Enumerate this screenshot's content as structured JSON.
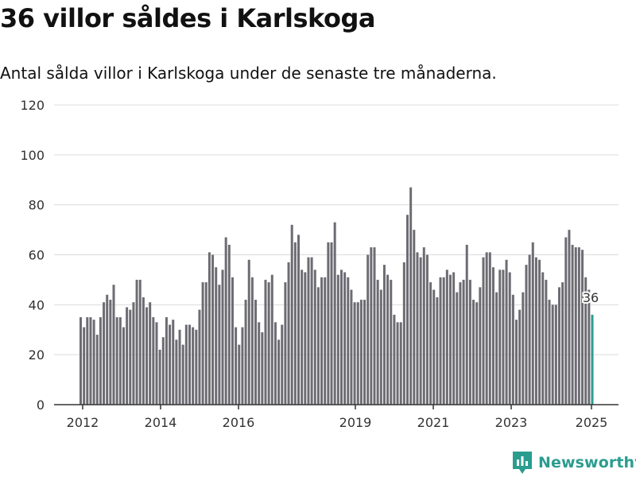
{
  "title": "36 villor såldes i Karlskoga",
  "subtitle": "Antal sålda villor i Karlskoga under de senaste tre månaderna.",
  "brand": {
    "name": "Newsworthy",
    "icon": "newsworthy-logo-icon",
    "color": "#2a9d8f"
  },
  "chart_data": {
    "type": "bar",
    "ylim": [
      0,
      120
    ],
    "yticks": [
      0,
      20,
      40,
      60,
      80,
      100,
      120
    ],
    "xticks": [
      "2012",
      "2014",
      "2016",
      "2019",
      "2021",
      "2023",
      "2025"
    ],
    "grid": true,
    "bar_color": "#6d6c73",
    "highlight_color": "#2a9d8f",
    "highlight_label": "36",
    "values": [
      35,
      31,
      35,
      35,
      34,
      28,
      35,
      41,
      44,
      42,
      48,
      35,
      35,
      31,
      39,
      38,
      41,
      50,
      50,
      43,
      39,
      41,
      35,
      33,
      22,
      27,
      35,
      32,
      34,
      26,
      30,
      24,
      32,
      32,
      31,
      30,
      38,
      49,
      49,
      61,
      60,
      55,
      48,
      54,
      67,
      64,
      51,
      31,
      24,
      31,
      42,
      58,
      51,
      42,
      33,
      29,
      50,
      49,
      52,
      33,
      26,
      32,
      49,
      57,
      72,
      65,
      68,
      54,
      53,
      59,
      59,
      54,
      47,
      51,
      51,
      65,
      65,
      73,
      52,
      54,
      53,
      51,
      46,
      41,
      41,
      42,
      42,
      60,
      63,
      63,
      50,
      46,
      56,
      52,
      50,
      36,
      33,
      33,
      57,
      76,
      87,
      70,
      61,
      59,
      63,
      60,
      49,
      46,
      43,
      51,
      51,
      54,
      52,
      53,
      45,
      49,
      50,
      64,
      50,
      42,
      41,
      47,
      59,
      61,
      61,
      55,
      45,
      54,
      54,
      58,
      53,
      44,
      34,
      38,
      45,
      56,
      60,
      65,
      59,
      58,
      53,
      50,
      42,
      40,
      40,
      47,
      49,
      67,
      70,
      64,
      63,
      63,
      62,
      51,
      46,
      36
    ]
  }
}
